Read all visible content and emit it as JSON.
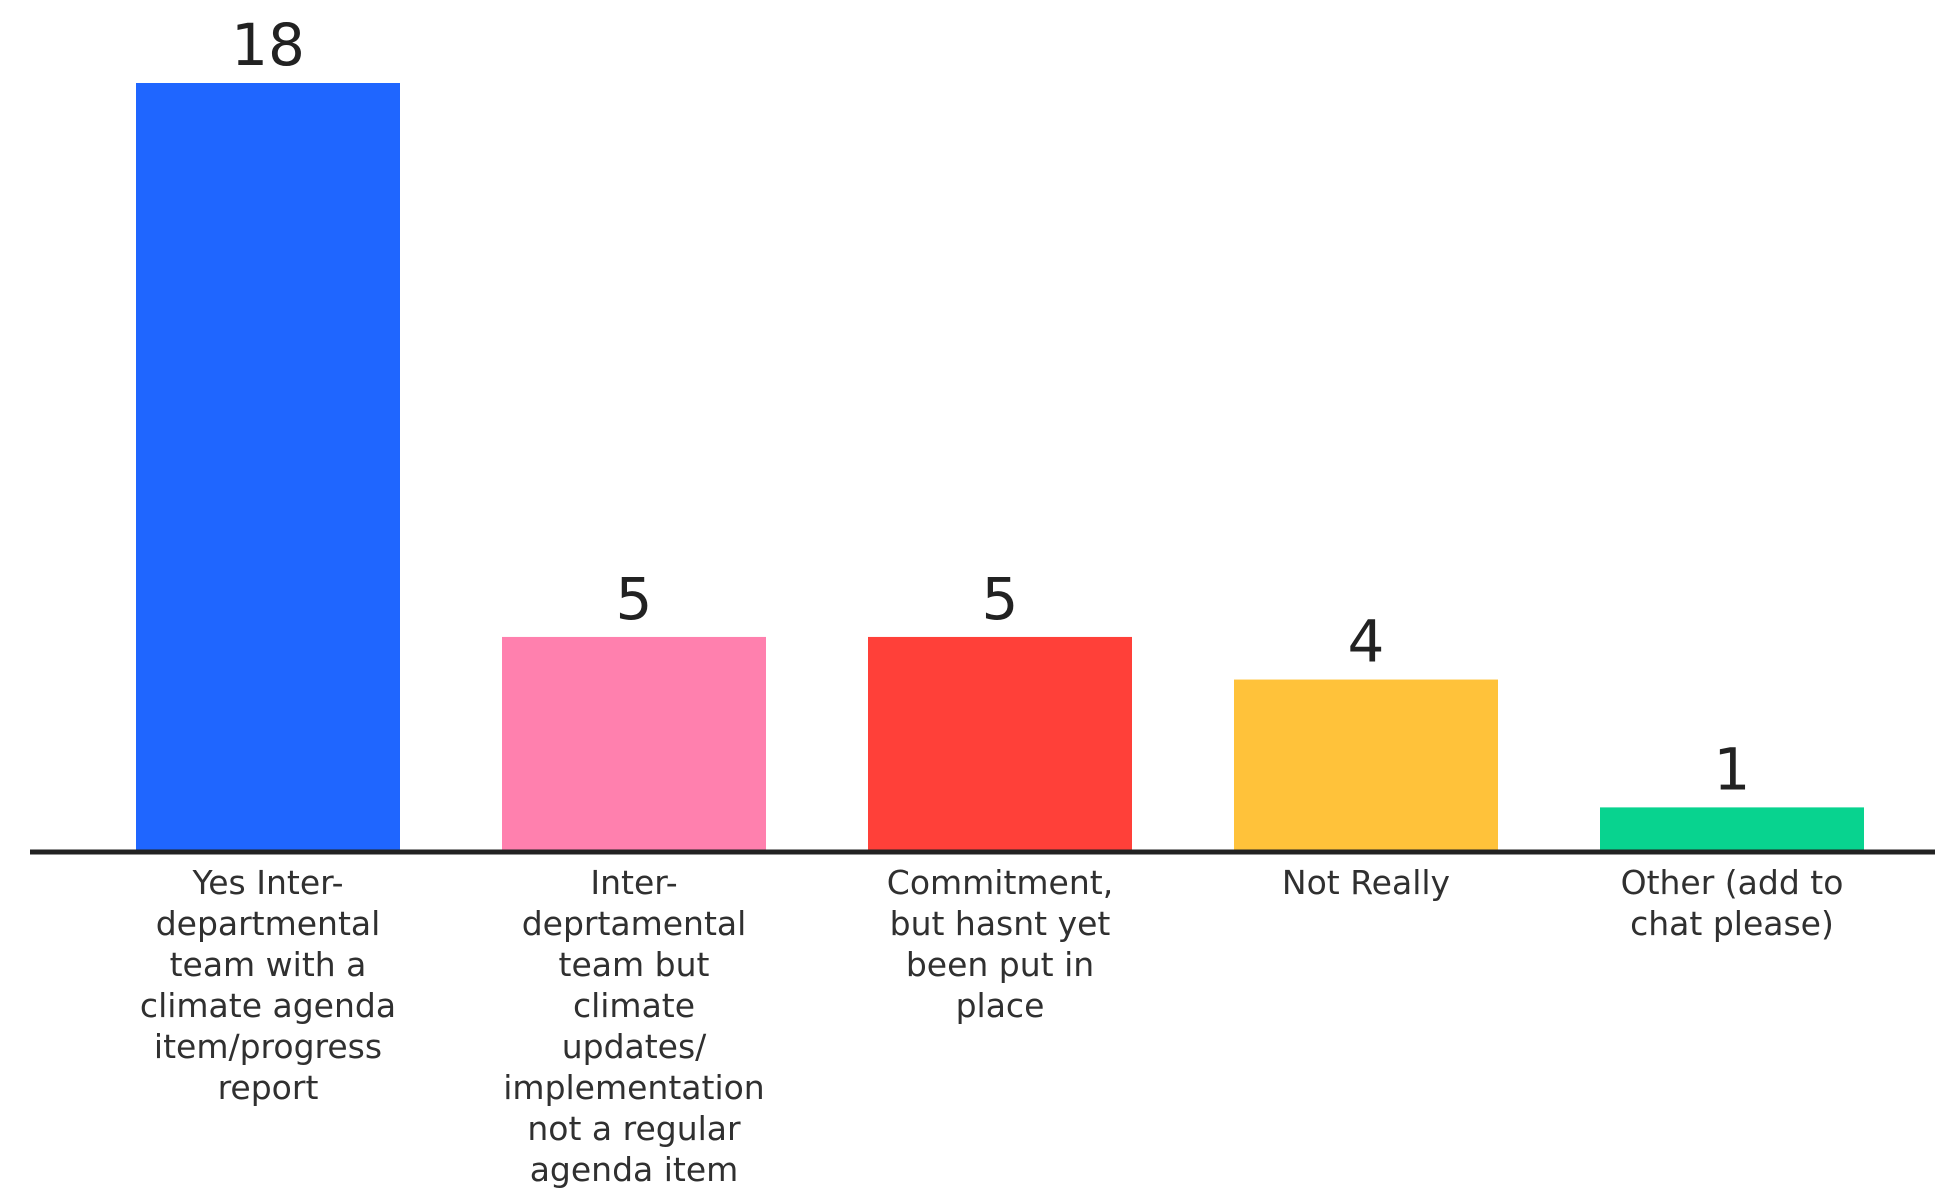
{
  "chart_data": {
    "type": "bar",
    "title": "",
    "xlabel": "",
    "ylabel": "",
    "ylim": [
      0,
      18
    ],
    "grid": false,
    "legend": "none",
    "categories": [
      "Yes Inter-departmental team with a climate agenda item/progress report",
      "Inter-deprtamental team but climate updates/ implementation not a regular agenda item",
      "Commitment, but hasnt yet been put in place",
      "Not Really",
      "Other (add to chat please)"
    ],
    "category_label_lines": [
      [
        "Yes Inter-",
        "departmental",
        "team with a",
        "climate agenda",
        "item/progress",
        "report"
      ],
      [
        "Inter-",
        "deprtamental",
        "team but",
        "climate",
        "updates/",
        "implementation",
        "not a regular",
        "agenda item"
      ],
      [
        "Commitment,",
        "but hasnt yet",
        "been put in",
        "place"
      ],
      [
        "Not Really"
      ],
      [
        "Other (add to",
        "chat please)"
      ]
    ],
    "values": [
      18,
      5,
      5,
      4,
      1
    ],
    "colors": [
      "#1f66ff",
      "#ff80ae",
      "#ff4039",
      "#ffc23a",
      "#08d38f"
    ]
  }
}
